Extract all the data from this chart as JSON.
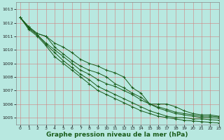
{
  "title": "Graphe pression niveau de la mer (hPa)",
  "background_color": "#b8e8e0",
  "grid_color": "#d08080",
  "line_color": "#1a5c1a",
  "xlim": [
    -0.5,
    23
  ],
  "ylim": [
    1004.5,
    1013.5
  ],
  "yticks": [
    1005,
    1006,
    1007,
    1008,
    1009,
    1010,
    1011,
    1012,
    1013
  ],
  "xticks": [
    0,
    1,
    2,
    3,
    4,
    5,
    6,
    7,
    8,
    9,
    10,
    11,
    12,
    13,
    14,
    15,
    16,
    17,
    18,
    19,
    20,
    21,
    22,
    23
  ],
  "lines": [
    [
      1012.4,
      1011.7,
      1011.2,
      1011.0,
      1010.5,
      1010.2,
      1009.8,
      1009.3,
      1009.0,
      1008.8,
      1008.5,
      1008.3,
      1008.0,
      1007.2,
      1006.8,
      1006.0,
      1006.0,
      1006.0,
      1005.8,
      1005.5,
      1005.3,
      1005.2,
      1005.2,
      1005.1
    ],
    [
      1012.4,
      1011.7,
      1011.2,
      1011.0,
      1010.2,
      1009.7,
      1009.2,
      1008.8,
      1008.5,
      1008.3,
      1008.0,
      1007.5,
      1007.2,
      1006.8,
      1006.5,
      1006.0,
      1005.8,
      1005.6,
      1005.4,
      1005.3,
      1005.2,
      1005.1,
      1005.1,
      1005.05
    ],
    [
      1012.4,
      1011.6,
      1011.1,
      1010.5,
      1010.0,
      1009.5,
      1009.0,
      1008.5,
      1008.2,
      1007.8,
      1007.5,
      1007.3,
      1007.0,
      1006.7,
      1006.3,
      1006.0,
      1005.7,
      1005.5,
      1005.3,
      1005.2,
      1005.1,
      1005.0,
      1005.0,
      1004.95
    ],
    [
      1012.4,
      1011.6,
      1011.1,
      1010.4,
      1009.8,
      1009.2,
      1008.7,
      1008.2,
      1007.8,
      1007.3,
      1007.0,
      1006.7,
      1006.4,
      1006.1,
      1005.8,
      1005.5,
      1005.3,
      1005.1,
      1005.0,
      1005.0,
      1004.9,
      1004.9,
      1004.85,
      1004.8
    ],
    [
      1012.4,
      1011.5,
      1011.0,
      1010.3,
      1009.5,
      1009.0,
      1008.5,
      1008.0,
      1007.5,
      1007.0,
      1006.7,
      1006.4,
      1006.1,
      1005.8,
      1005.5,
      1005.3,
      1005.1,
      1005.0,
      1004.9,
      1004.8,
      1004.75,
      1004.7,
      1004.65,
      1004.6
    ]
  ],
  "title_fontsize": 6.5,
  "tick_fontsize": 4.5
}
